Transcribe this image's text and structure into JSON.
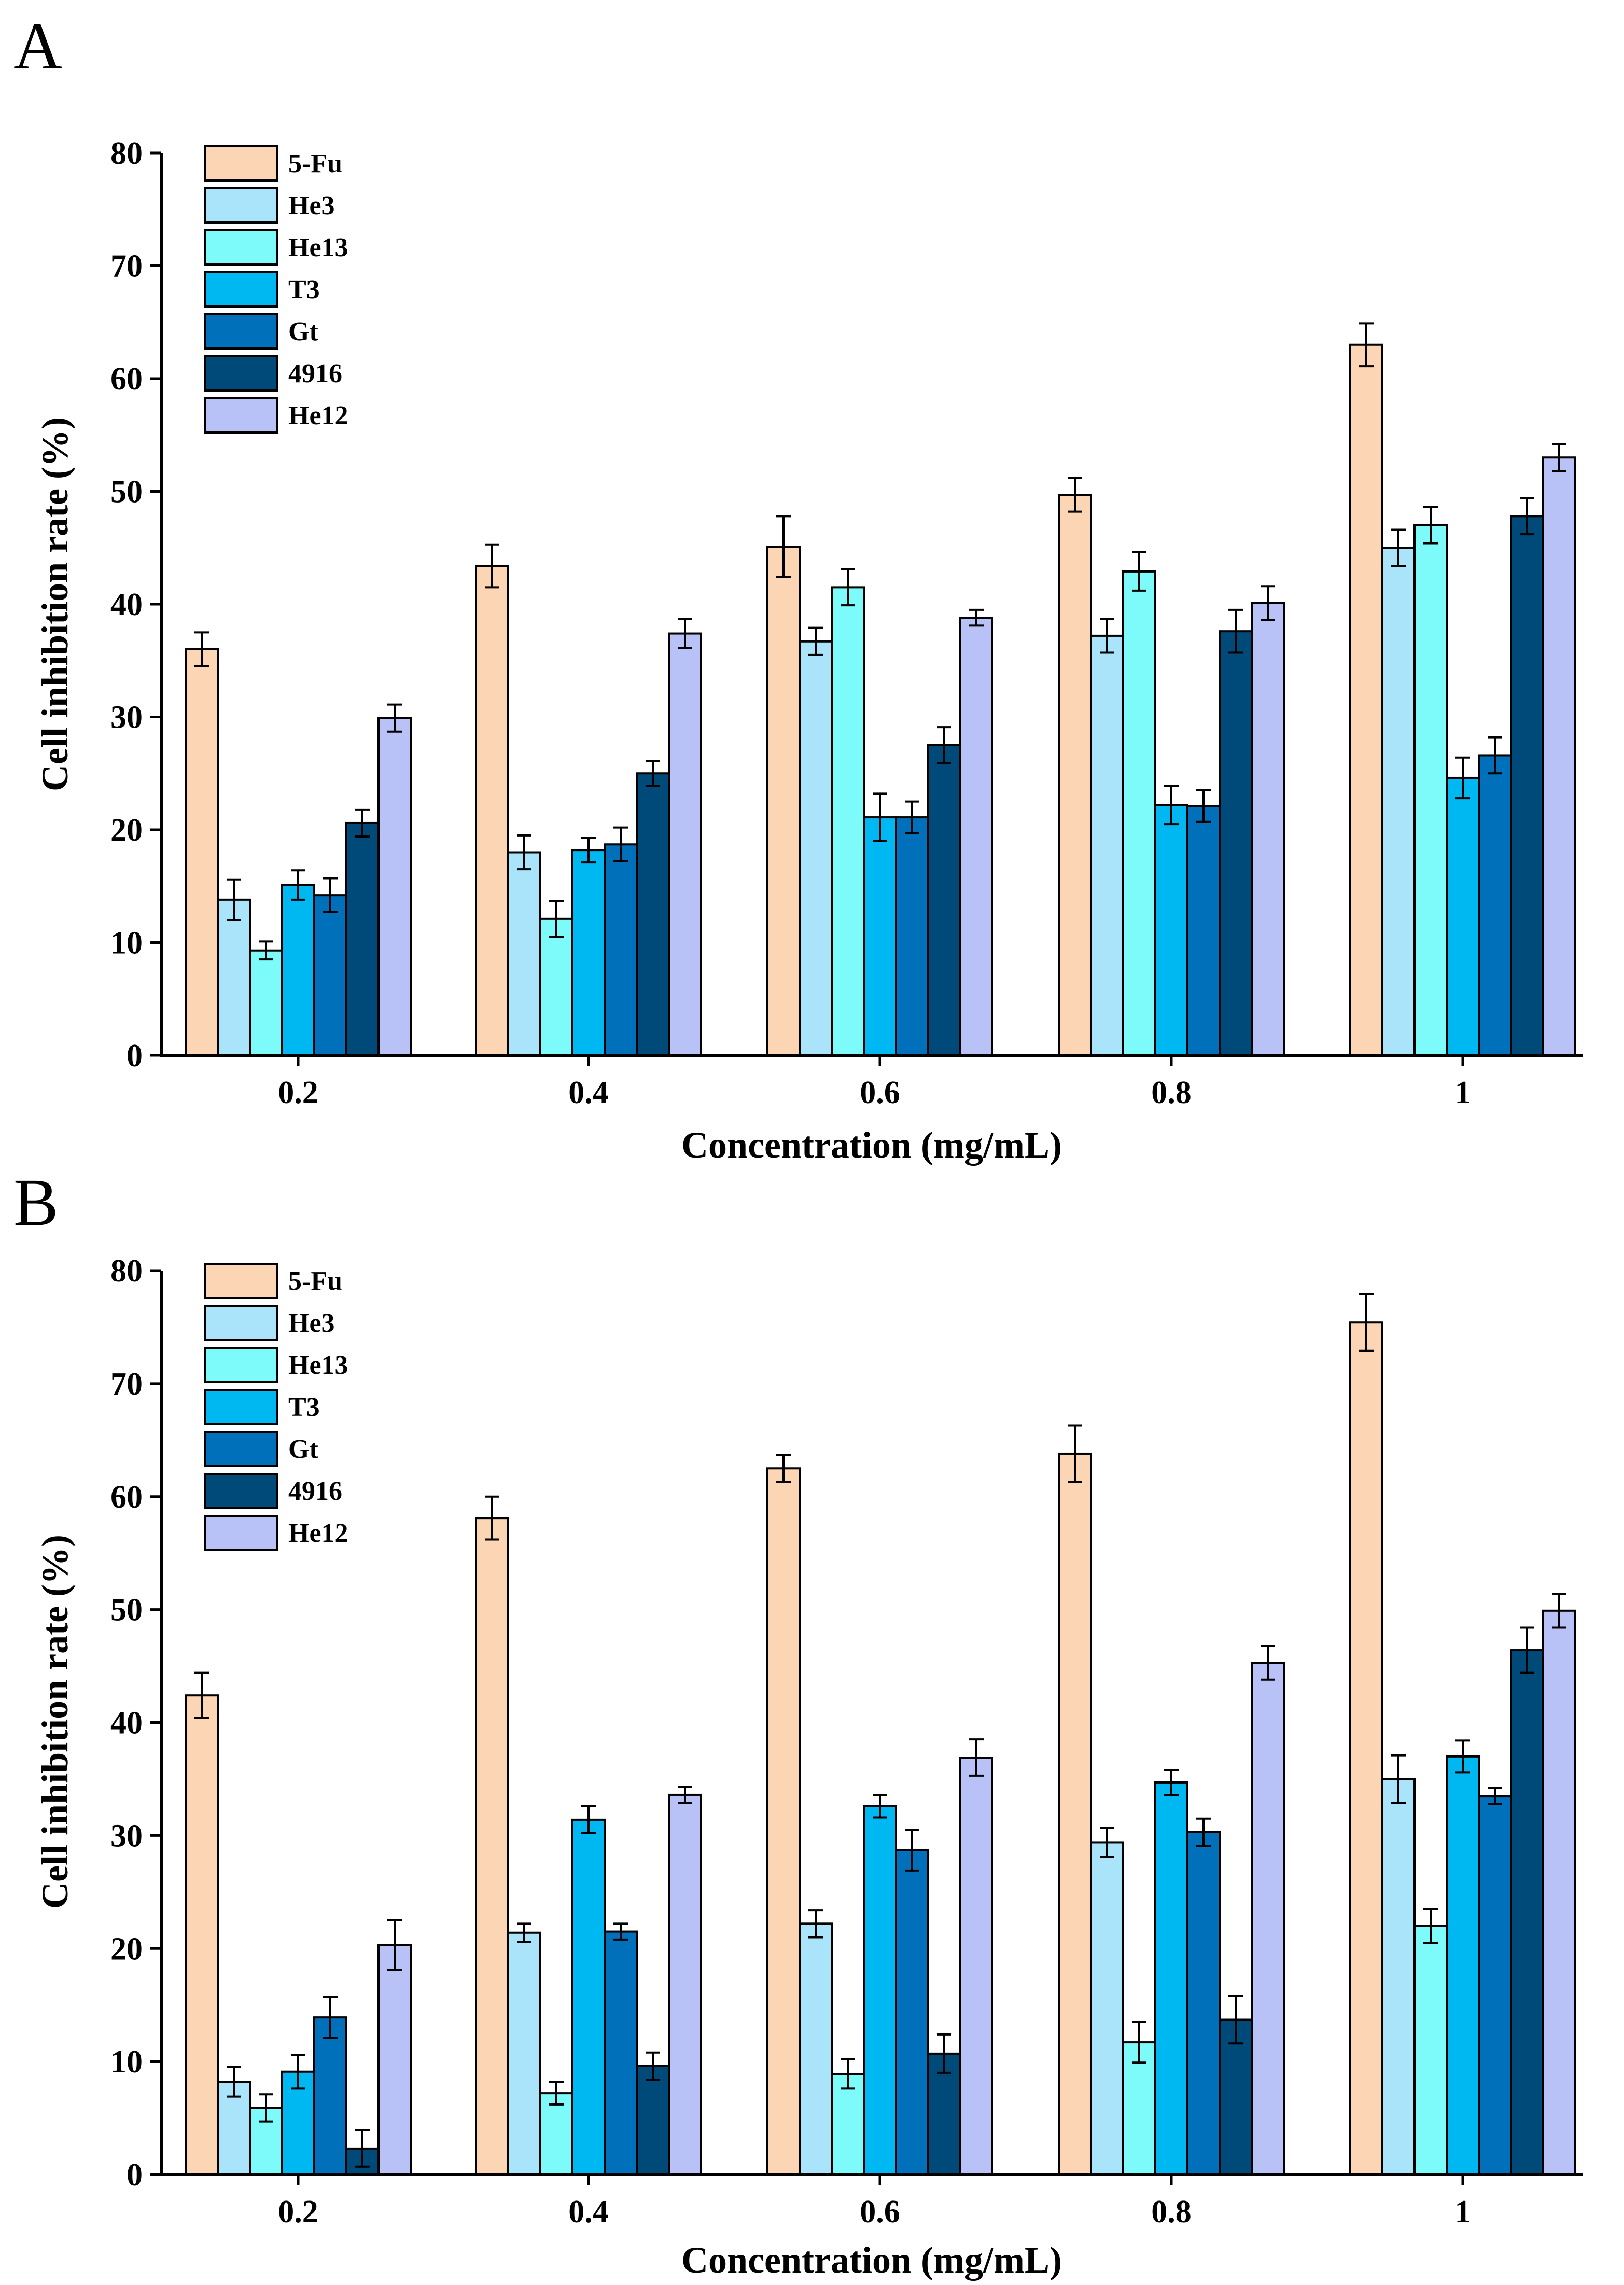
{
  "figure": {
    "colors": {
      "5-Fu": "#FCD5B5",
      "He3": "#A9E4FA",
      "He13": "#7DFBFB",
      "T3": "#00B8F1",
      "Gt": "#0070BA",
      "4916": "#004A7A",
      "He12": "#B9C2F7"
    }
  },
  "chart_data": [
    {
      "panel": "A",
      "type": "bar",
      "xlabel": "Concentration (mg/mL)",
      "ylabel": "Cell inhibition rate (%)",
      "ylim": [
        0,
        80
      ],
      "yticks": [
        "0",
        "10",
        "20",
        "30",
        "40",
        "50",
        "60",
        "70",
        "80"
      ],
      "categories": [
        "0.2",
        "0.4",
        "0.6",
        "0.8",
        "1"
      ],
      "legend_position": "top-left",
      "series": [
        {
          "name": "5-Fu",
          "values": [
            36.0,
            43.4,
            45.1,
            49.7,
            63.0
          ],
          "errors": [
            1.5,
            1.9,
            2.7,
            1.5,
            1.9
          ]
        },
        {
          "name": "He3",
          "values": [
            13.8,
            18.0,
            36.7,
            37.2,
            45.0
          ],
          "errors": [
            1.8,
            1.5,
            1.2,
            1.5,
            1.6
          ]
        },
        {
          "name": "He13",
          "values": [
            9.3,
            12.1,
            41.5,
            42.9,
            47.0
          ],
          "errors": [
            0.8,
            1.6,
            1.6,
            1.7,
            1.6
          ]
        },
        {
          "name": "T3",
          "values": [
            15.1,
            18.2,
            21.1,
            22.2,
            24.6
          ],
          "errors": [
            1.3,
            1.1,
            2.1,
            1.7,
            1.8
          ]
        },
        {
          "name": "Gt",
          "values": [
            14.2,
            18.7,
            21.1,
            22.1,
            26.6
          ],
          "errors": [
            1.5,
            1.5,
            1.4,
            1.4,
            1.6
          ]
        },
        {
          "name": "4916",
          "values": [
            20.6,
            25.0,
            27.5,
            37.6,
            47.8
          ],
          "errors": [
            1.2,
            1.1,
            1.6,
            1.9,
            1.6
          ]
        },
        {
          "name": "He12",
          "values": [
            29.9,
            37.4,
            38.8,
            40.1,
            53.0
          ],
          "errors": [
            1.2,
            1.3,
            0.7,
            1.5,
            1.2
          ]
        }
      ]
    },
    {
      "panel": "B",
      "type": "bar",
      "xlabel": "Concentration (mg/mL)",
      "ylabel": "Cell inhibition rate (%)",
      "ylim": [
        0,
        80
      ],
      "yticks": [
        "0",
        "10",
        "20",
        "30",
        "40",
        "50",
        "60",
        "70",
        "80"
      ],
      "categories": [
        "0.2",
        "0.4",
        "0.6",
        "0.8",
        "1"
      ],
      "legend_position": "top-left",
      "series": [
        {
          "name": "5-Fu",
          "values": [
            42.4,
            58.1,
            62.5,
            63.8,
            75.4
          ],
          "errors": [
            2.0,
            1.9,
            1.2,
            2.5,
            2.5
          ]
        },
        {
          "name": "He3",
          "values": [
            8.2,
            21.4,
            22.2,
            29.4,
            35.0
          ],
          "errors": [
            1.3,
            0.8,
            1.2,
            1.3,
            2.1
          ]
        },
        {
          "name": "He13",
          "values": [
            5.9,
            7.2,
            8.9,
            11.7,
            22.0
          ],
          "errors": [
            1.2,
            1.0,
            1.3,
            1.8,
            1.5
          ]
        },
        {
          "name": "T3",
          "values": [
            9.1,
            31.4,
            32.6,
            34.7,
            37.0
          ],
          "errors": [
            1.5,
            1.2,
            1.0,
            1.1,
            1.4
          ]
        },
        {
          "name": "Gt",
          "values": [
            13.9,
            21.5,
            28.7,
            30.3,
            33.5
          ],
          "errors": [
            1.8,
            0.7,
            1.8,
            1.2,
            0.7
          ]
        },
        {
          "name": "4916",
          "values": [
            2.3,
            9.6,
            10.7,
            13.7,
            46.4
          ],
          "errors": [
            1.6,
            1.2,
            1.7,
            2.1,
            2.0
          ]
        },
        {
          "name": "He12",
          "values": [
            20.3,
            33.6,
            36.9,
            45.3,
            49.9
          ],
          "errors": [
            2.2,
            0.7,
            1.6,
            1.5,
            1.5
          ]
        }
      ]
    }
  ]
}
